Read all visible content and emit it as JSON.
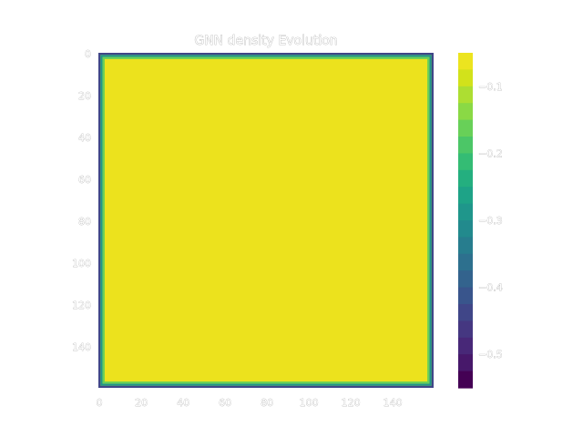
{
  "chart_data": {
    "type": "heatmap",
    "title": "GNN density Evolution",
    "xlabel": "",
    "ylabel": "",
    "grid": false,
    "x_ticks": [
      0,
      20,
      40,
      60,
      80,
      100,
      120,
      140
    ],
    "y_ticks": [
      0,
      20,
      40,
      60,
      80,
      100,
      120,
      140
    ],
    "x_range": [
      0,
      159
    ],
    "y_range": [
      0,
      159
    ],
    "y_axis_inverted": true,
    "colormap": "viridis",
    "colorbar": {
      "ticks": [
        -0.1,
        -0.2,
        -0.3,
        -0.4,
        -0.5
      ],
      "tick_labels": [
        "−0.1",
        "−0.2",
        "−0.3",
        "−0.4",
        "−0.5"
      ],
      "range": [
        -0.55,
        -0.05
      ],
      "levels": 20
    },
    "field": {
      "interior_value": -0.05,
      "boundary_value": -0.45,
      "boundary_transition_cells": 3,
      "description_of_pattern": "uniform maximum in interior, dropping to low values at all four edges"
    }
  },
  "colors": {
    "viridis_low": "#440154",
    "viridis_mid": "#21918c",
    "viridis_high": "#fde725",
    "plot_interior": "#ece21d"
  }
}
